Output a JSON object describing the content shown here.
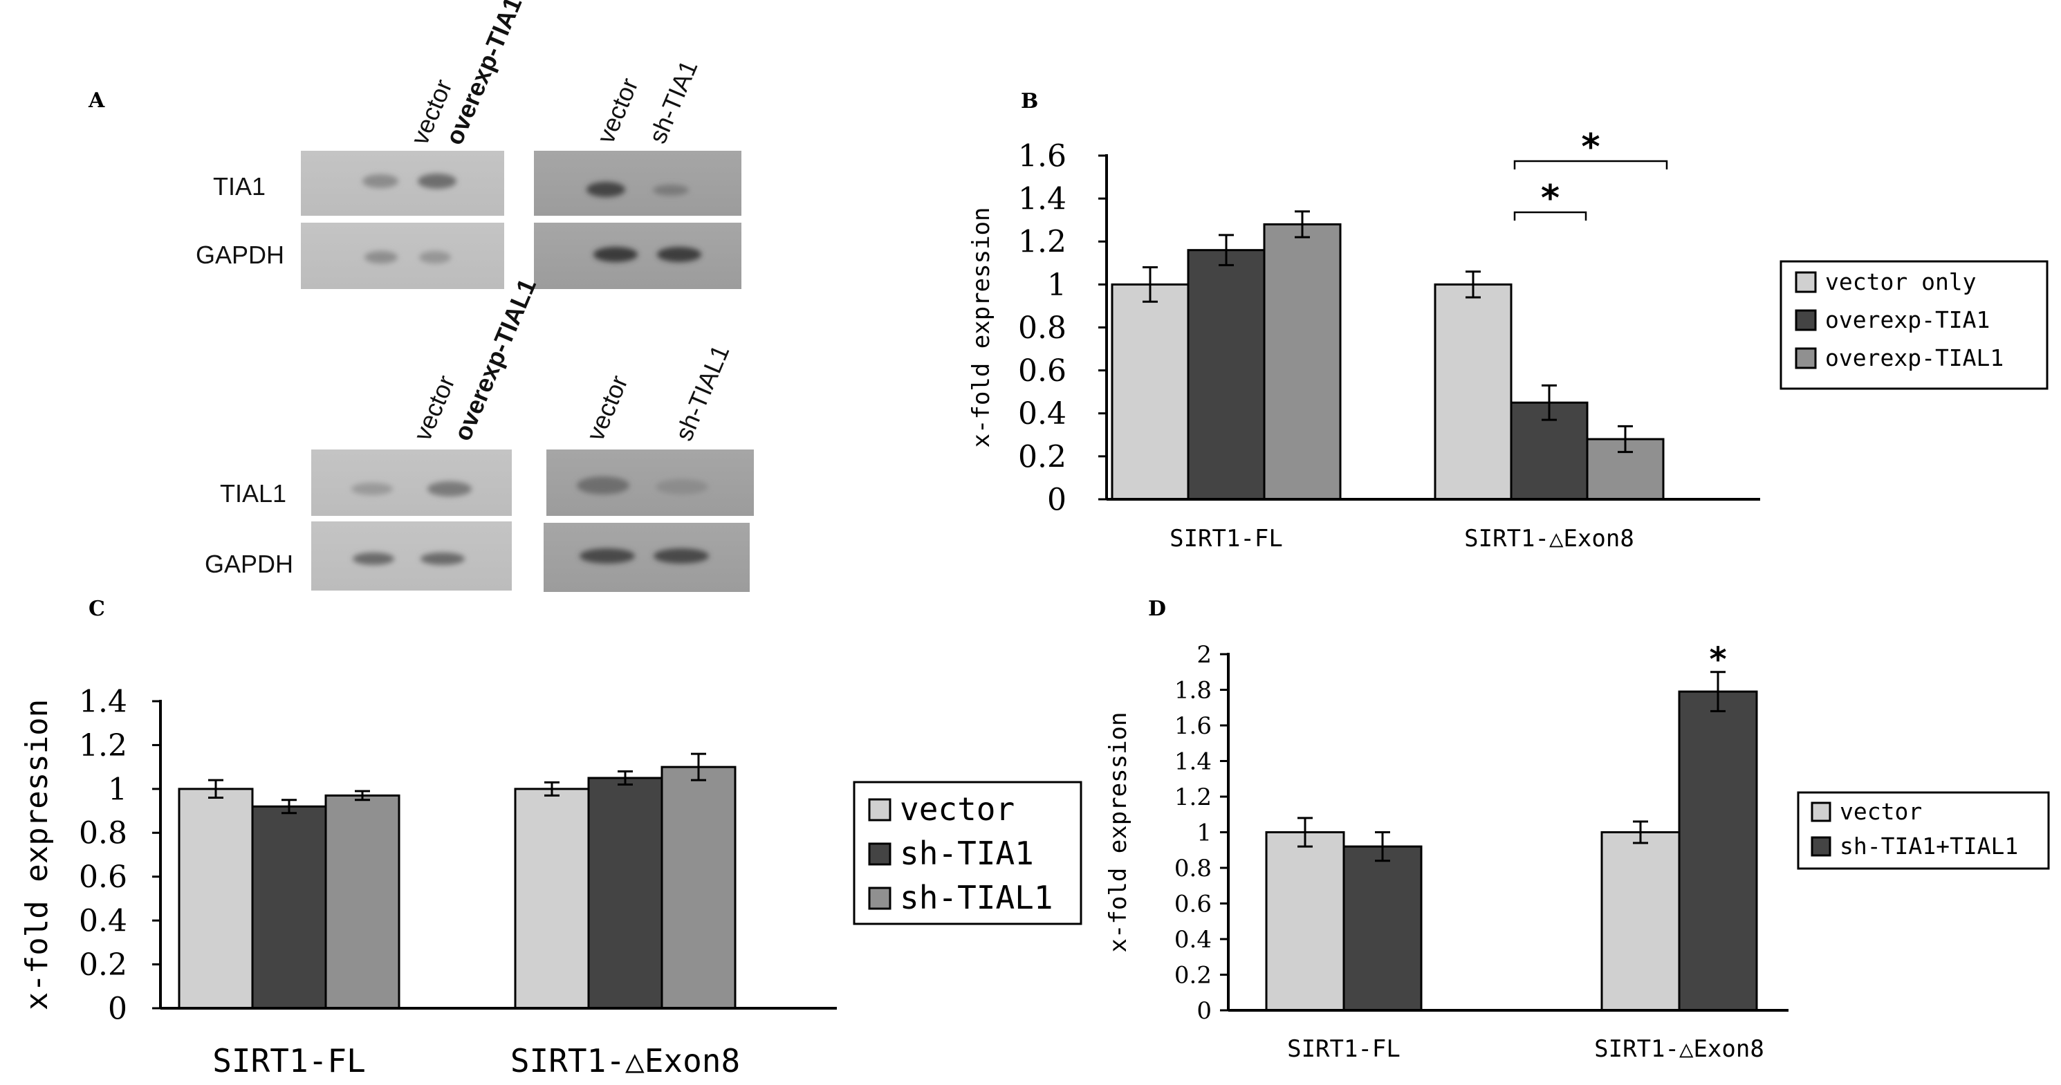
{
  "colors": {
    "light": "#d0d0d0",
    "dark": "#444444",
    "mid": "#909090"
  },
  "panel_a": {
    "letter": "A",
    "blots": [
      {
        "lanes": [
          "vector",
          "overexp-TIA1"
        ],
        "rows": [
          "TIA1",
          "GAPDH"
        ]
      },
      {
        "lanes": [
          "vector",
          "sh-TIA1"
        ],
        "rows": []
      },
      {
        "lanes": [
          "vector",
          "overexp-TIAL1"
        ],
        "rows": [
          "TIAL1",
          "GAPDH"
        ]
      },
      {
        "lanes": [
          "vector",
          "sh-TIAL1"
        ],
        "rows": []
      }
    ]
  },
  "chart_data": [
    {
      "panel": "B",
      "type": "bar",
      "title": "",
      "xlabel": "",
      "ylabel": "x-fold expression",
      "ylim": [
        0,
        1.6
      ],
      "yticks": [
        "0",
        "0.2",
        "0.4",
        "0.6",
        "0.8",
        "1",
        "1.2",
        "1.4",
        "1.6"
      ],
      "categories": [
        "SIRT1-FL",
        "SIRT1-△Exon8"
      ],
      "series": [
        {
          "name": "vector only",
          "values": [
            1.0,
            1.0
          ],
          "errors": [
            0.08,
            0.06
          ],
          "color": "#d0d0d0"
        },
        {
          "name": "overexp-TIA1",
          "values": [
            1.16,
            0.45
          ],
          "errors": [
            0.07,
            0.08
          ],
          "color": "#444444"
        },
        {
          "name": "overexp-TIAL1",
          "values": [
            1.28,
            0.28
          ],
          "errors": [
            0.06,
            0.06
          ],
          "color": "#909090"
        }
      ],
      "significance": [
        "*",
        "*"
      ],
      "legend": "right"
    },
    {
      "panel": "C",
      "type": "bar",
      "title": "",
      "xlabel": "",
      "ylabel": "x-fold expression",
      "ylim": [
        0,
        1.4
      ],
      "yticks": [
        "0",
        "0.2",
        "0.4",
        "0.6",
        "0.8",
        "1",
        "1.2",
        "1.4"
      ],
      "categories": [
        "SIRT1-FL",
        "SIRT1-△Exon8"
      ],
      "series": [
        {
          "name": "vector",
          "values": [
            1.0,
            1.0
          ],
          "errors": [
            0.04,
            0.03
          ],
          "color": "#d0d0d0"
        },
        {
          "name": "sh-TIA1",
          "values": [
            0.92,
            1.05
          ],
          "errors": [
            0.03,
            0.03
          ],
          "color": "#444444"
        },
        {
          "name": "sh-TIAL1",
          "values": [
            0.97,
            1.1
          ],
          "errors": [
            0.02,
            0.06
          ],
          "color": "#909090"
        }
      ],
      "significance": [],
      "legend": "right"
    },
    {
      "panel": "D",
      "type": "bar",
      "title": "",
      "xlabel": "",
      "ylabel": "x-fold expression",
      "ylim": [
        0,
        2
      ],
      "yticks": [
        "0",
        "0.2",
        "0.4",
        "0.6",
        "0.8",
        "1",
        "1.2",
        "1.4",
        "1.6",
        "1.8",
        "2"
      ],
      "categories": [
        "SIRT1-FL",
        "SIRT1-△Exon8"
      ],
      "series": [
        {
          "name": "vector",
          "values": [
            1.0,
            1.0
          ],
          "errors": [
            0.08,
            0.06
          ],
          "color": "#d0d0d0"
        },
        {
          "name": "sh-TIA1+TIAL1",
          "values": [
            0.92,
            1.79
          ],
          "errors": [
            0.08,
            0.11
          ],
          "color": "#444444"
        }
      ],
      "significance": [
        "*"
      ],
      "legend": "right"
    }
  ]
}
